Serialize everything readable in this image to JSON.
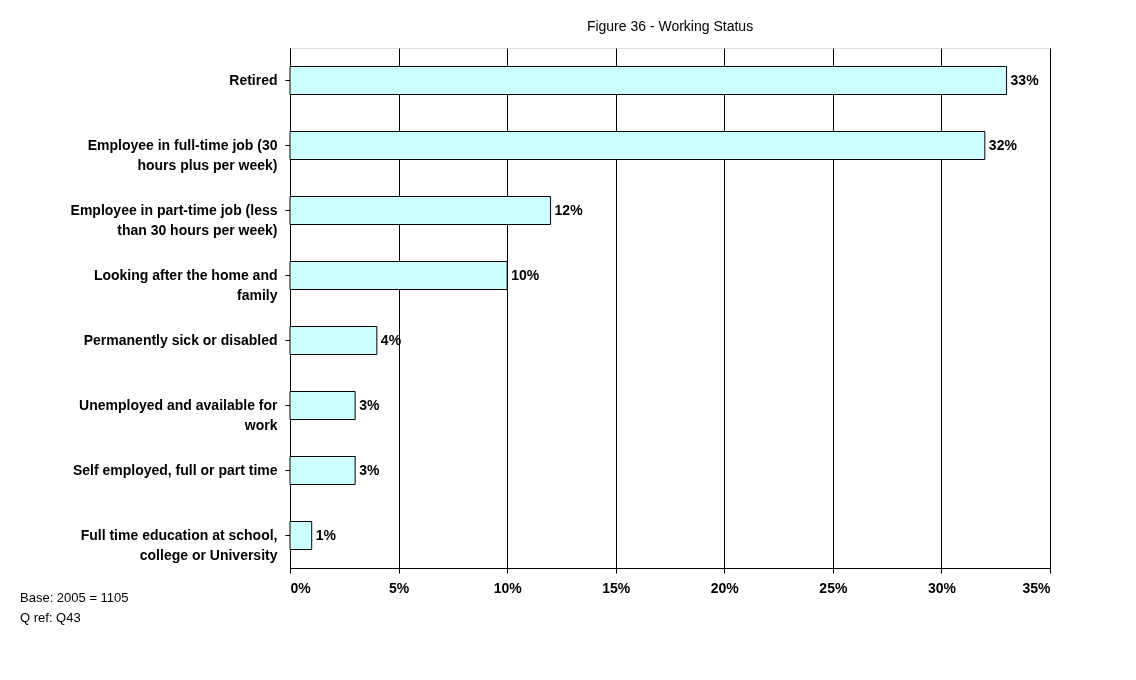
{
  "chart_data": {
    "type": "bar",
    "orientation": "horizontal",
    "title": "Figure 36 - Working Status",
    "categories": [
      "Retired",
      "Employee in full-time job (30 hours plus per week)",
      "Employee in part-time job (less than 30 hours per week)",
      "Looking after the home and family",
      "Permanently sick or disabled",
      "Unemployed and available for work",
      "Self employed, full or part time",
      "Full time education at school, college or University"
    ],
    "values": [
      33,
      32,
      12,
      10,
      4,
      3,
      3,
      1
    ],
    "value_labels": [
      "33%",
      "32%",
      "12%",
      "10%",
      "4%",
      "3%",
      "3%",
      "1%"
    ],
    "color": "#ccffff",
    "xlim": [
      0,
      35
    ],
    "xticks": [
      {
        "value": 0,
        "label": "0%"
      },
      {
        "value": 5,
        "label": "5%"
      },
      {
        "value": 10,
        "label": "10%"
      },
      {
        "value": 15,
        "label": "15%"
      },
      {
        "value": 20,
        "label": "20%"
      },
      {
        "value": 25,
        "label": "25%"
      },
      {
        "value": 30,
        "label": "30%"
      },
      {
        "value": 35,
        "label": "35%"
      }
    ],
    "grid": "x",
    "annotations": [
      "Base: 2005 = 1105",
      "Q ref: Q43"
    ]
  }
}
